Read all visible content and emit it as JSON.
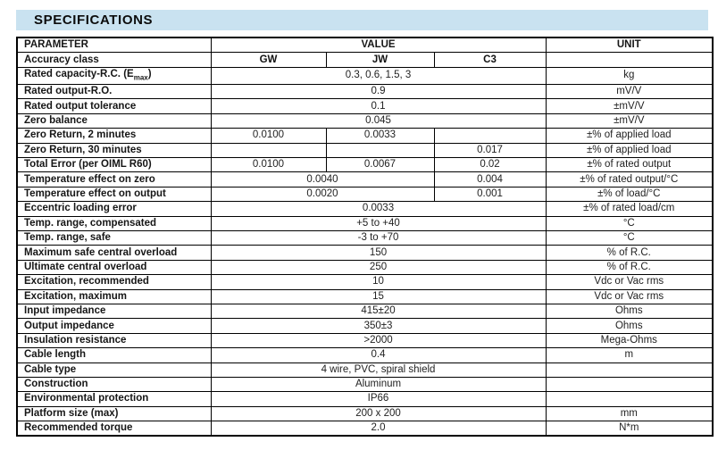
{
  "title": "SPECIFICATIONS",
  "colors": {
    "title_bar_bg": "#c9e2f0",
    "table_border": "#000000",
    "text": "#161616"
  },
  "table": {
    "header": {
      "parameter": "PARAMETER",
      "value": "VALUE",
      "unit": "UNIT"
    },
    "rows": [
      {
        "param": "Accuracy class",
        "cells": [
          {
            "text": "GW",
            "span": 1,
            "bold": true
          },
          {
            "text": "JW",
            "span": 1,
            "bold": true
          },
          {
            "text": "C3",
            "span": 1,
            "bold": true
          }
        ],
        "unit": ""
      },
      {
        "param": "Rated capacity-R.C. (E",
        "param_sub": "max",
        "param_suffix": ")",
        "cells": [
          {
            "text": "0.3, 0.6, 1.5, 3",
            "span": 3
          }
        ],
        "unit": "kg"
      },
      {
        "param": "Rated output-R.O.",
        "cells": [
          {
            "text": "0.9",
            "span": 3
          }
        ],
        "unit": "mV/V"
      },
      {
        "param": "Rated output tolerance",
        "cells": [
          {
            "text": "0.1",
            "span": 3
          }
        ],
        "unit": "±mV/V"
      },
      {
        "param": "Zero balance",
        "cells": [
          {
            "text": "0.045",
            "span": 3
          }
        ],
        "unit": "±mV/V"
      },
      {
        "param": "Zero Return, 2 minutes",
        "cells": [
          {
            "text": "0.0100",
            "span": 1
          },
          {
            "text": "0.0033",
            "span": 1
          },
          {
            "text": "",
            "span": 1
          }
        ],
        "unit": "±% of applied load"
      },
      {
        "param": "Zero Return, 30 minutes",
        "cells": [
          {
            "text": "",
            "span": 1
          },
          {
            "text": "",
            "span": 1
          },
          {
            "text": "0.017",
            "span": 1
          }
        ],
        "unit": "±% of applied load"
      },
      {
        "param": "Total Error (per OIML R60)",
        "cells": [
          {
            "text": "0.0100",
            "span": 1
          },
          {
            "text": "0.0067",
            "span": 1
          },
          {
            "text": "0.02",
            "span": 1
          }
        ],
        "unit": "±% of rated output"
      },
      {
        "param": "Temperature effect on zero",
        "cells": [
          {
            "text": "0.0040",
            "span": 2
          },
          {
            "text": "0.004",
            "span": 1
          }
        ],
        "unit": "±% of rated output/°C"
      },
      {
        "param": "Temperature effect on output",
        "cells": [
          {
            "text": "0.0020",
            "span": 2
          },
          {
            "text": "0.001",
            "span": 1
          }
        ],
        "unit": "±% of load/°C"
      },
      {
        "param": "Eccentric loading error",
        "cells": [
          {
            "text": "0.0033",
            "span": 3
          }
        ],
        "unit": "±% of rated load/cm"
      },
      {
        "param": "Temp. range, compensated",
        "cells": [
          {
            "text": "+5 to +40",
            "span": 3
          }
        ],
        "unit": "°C"
      },
      {
        "param": "Temp. range, safe",
        "cells": [
          {
            "text": "-3 to +70",
            "span": 3
          }
        ],
        "unit": "°C"
      },
      {
        "param": "Maximum safe central overload",
        "cells": [
          {
            "text": "150",
            "span": 3
          }
        ],
        "unit": "% of R.C."
      },
      {
        "param": "Ultimate central overload",
        "cells": [
          {
            "text": "250",
            "span": 3
          }
        ],
        "unit": "% of R.C."
      },
      {
        "param": "Excitation, recommended",
        "cells": [
          {
            "text": "10",
            "span": 3
          }
        ],
        "unit": "Vdc or Vac rms"
      },
      {
        "param": "Excitation, maximum",
        "cells": [
          {
            "text": "15",
            "span": 3
          }
        ],
        "unit": "Vdc or Vac rms"
      },
      {
        "param": "Input impedance",
        "cells": [
          {
            "text": "415±20",
            "span": 3
          }
        ],
        "unit": "Ohms"
      },
      {
        "param": "Output impedance",
        "cells": [
          {
            "text": "350±3",
            "span": 3
          }
        ],
        "unit": "Ohms"
      },
      {
        "param": "Insulation resistance",
        "cells": [
          {
            "text": ">2000",
            "span": 3
          }
        ],
        "unit": "Mega-Ohms"
      },
      {
        "param": "Cable length",
        "cells": [
          {
            "text": "0.4",
            "span": 3
          }
        ],
        "unit": "m"
      },
      {
        "param": "Cable type",
        "cells": [
          {
            "text": "4 wire, PVC, spiral shield",
            "span": 3
          }
        ],
        "unit": ""
      },
      {
        "param": "Construction",
        "cells": [
          {
            "text": "Aluminum",
            "span": 3
          }
        ],
        "unit": ""
      },
      {
        "param": "Environmental protection",
        "cells": [
          {
            "text": "IP66",
            "span": 3
          }
        ],
        "unit": ""
      },
      {
        "param": "Platform size (max)",
        "cells": [
          {
            "text": "200 x 200",
            "span": 3
          }
        ],
        "unit": "mm"
      },
      {
        "param": "Recommended torque",
        "cells": [
          {
            "text": "2.0",
            "span": 3
          }
        ],
        "unit": "N*m"
      }
    ]
  }
}
